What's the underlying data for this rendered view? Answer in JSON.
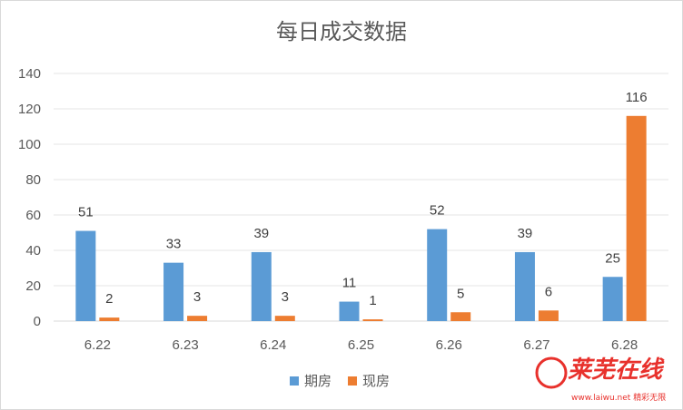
{
  "chart_data": {
    "type": "bar",
    "title": "每日成交数据",
    "categories": [
      "6.22",
      "6.23",
      "6.24",
      "6.25",
      "6.26",
      "6.27",
      "6.28"
    ],
    "series": [
      {
        "name": "期房",
        "color": "#5b9bd5",
        "values": [
          51,
          33,
          39,
          11,
          52,
          39,
          25
        ]
      },
      {
        "name": "现房",
        "color": "#ed7d31",
        "values": [
          2,
          3,
          3,
          1,
          5,
          6,
          116
        ]
      }
    ],
    "yticks": [
      "0",
      "20",
      "40",
      "60",
      "80",
      "100",
      "120",
      "140"
    ],
    "ylim": [
      0,
      140
    ],
    "grid": true,
    "legend": "bottom"
  },
  "watermark": {
    "brand": "莱芜在线",
    "sub": "www.laiwu.net 精彩无限"
  }
}
